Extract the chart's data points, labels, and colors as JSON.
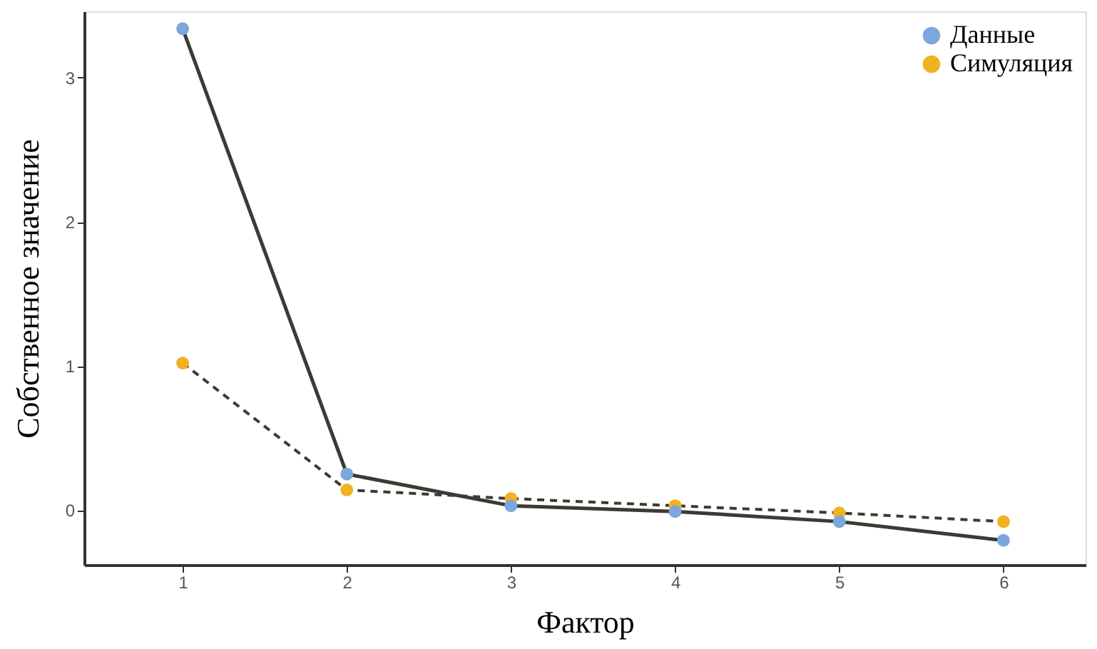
{
  "chart_data": {
    "type": "line",
    "xlabel": "Фактор",
    "ylabel": "Собственное значение",
    "x": [
      1,
      2,
      3,
      4,
      5,
      6
    ],
    "series": [
      {
        "name": "Данные",
        "color": "#7ba7dc",
        "line_style": "solid",
        "values": [
          3.34,
          0.25,
          0.03,
          -0.01,
          -0.08,
          -0.21
        ]
      },
      {
        "name": "Симуляция",
        "color": "#f2b11f",
        "line_style": "dashed",
        "values": [
          1.02,
          0.14,
          0.08,
          0.03,
          -0.02,
          -0.08
        ]
      }
    ],
    "xlim": [
      0.4,
      6.5
    ],
    "xticks": [
      1,
      2,
      3,
      4,
      5,
      6
    ],
    "ylim": [
      -0.38,
      3.46
    ],
    "yticks": [
      0,
      1,
      2,
      3
    ],
    "marker": "circle",
    "grid": false,
    "legend": "top right"
  }
}
